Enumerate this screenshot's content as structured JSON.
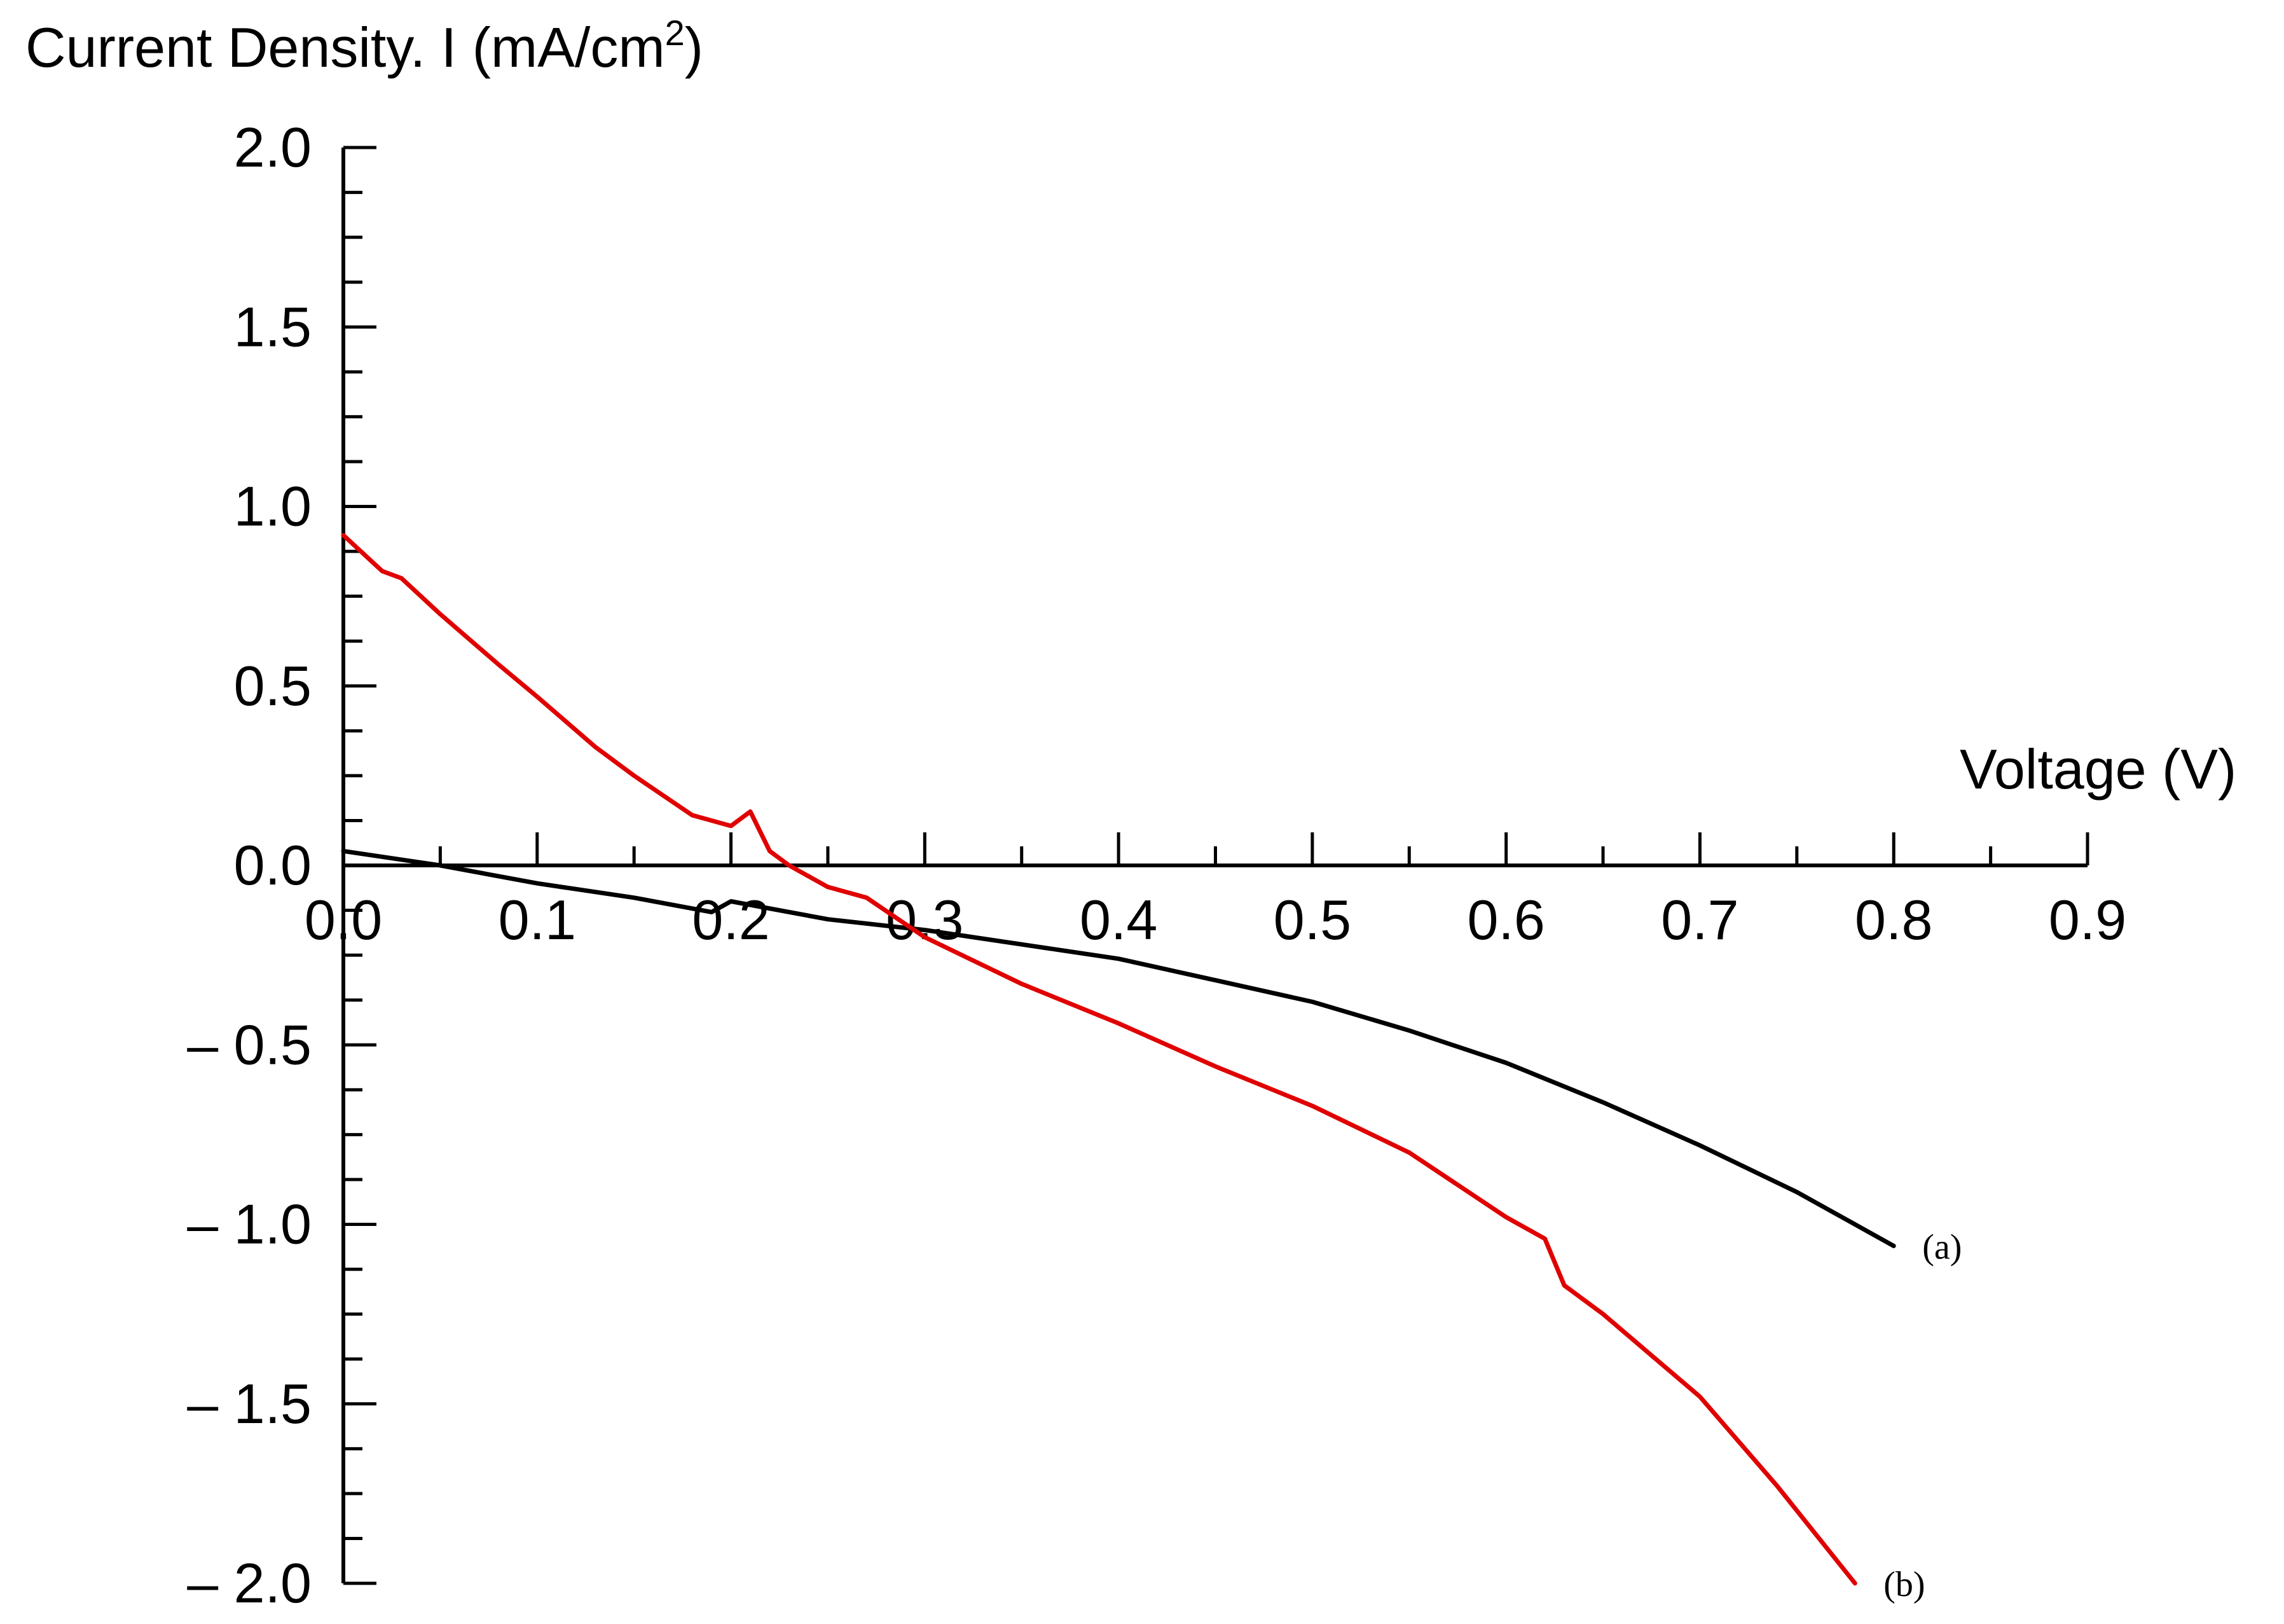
{
  "chart_data": {
    "type": "line",
    "ylabel": "Current Density. I (mA/cm",
    "ylabel_sup": "2",
    "ylabel_close": ")",
    "xlabel": "Voltage (V)",
    "xlim": [
      0.0,
      0.9
    ],
    "ylim": [
      -2.0,
      2.0
    ],
    "x_ticks": [
      "0.0",
      "0.1",
      "0.2",
      "0.3",
      "0.4",
      "0.5",
      "0.6",
      "0.7",
      "0.8",
      "0.9"
    ],
    "y_ticks": [
      {
        "value": 2.0,
        "label": "2.0"
      },
      {
        "value": 1.5,
        "label": "1.5"
      },
      {
        "value": 1.0,
        "label": "1.0"
      },
      {
        "value": 0.5,
        "label": "0.5"
      },
      {
        "value": 0.0,
        "label": "0.0"
      },
      {
        "value": -0.5,
        "label": "– 0.5"
      },
      {
        "value": -1.0,
        "label": "– 1.0"
      },
      {
        "value": -1.5,
        "label": "– 1.5"
      },
      {
        "value": -2.0,
        "label": "– 2.0"
      }
    ],
    "grid": false,
    "series": [
      {
        "name": "(a)",
        "color": "#000000",
        "x": [
          0.0,
          0.05,
          0.1,
          0.15,
          0.19,
          0.2,
          0.25,
          0.3,
          0.35,
          0.4,
          0.45,
          0.5,
          0.55,
          0.6,
          0.65,
          0.7,
          0.75,
          0.8
        ],
        "y": [
          0.04,
          0.0,
          -0.05,
          -0.09,
          -0.13,
          -0.1,
          -0.15,
          -0.18,
          -0.22,
          -0.26,
          -0.32,
          -0.38,
          -0.46,
          -0.55,
          -0.66,
          -0.78,
          -0.91,
          -1.06
        ]
      },
      {
        "name": "(b)",
        "color": "#e00000",
        "x": [
          0.0,
          0.02,
          0.03,
          0.05,
          0.08,
          0.1,
          0.13,
          0.15,
          0.18,
          0.2,
          0.21,
          0.22,
          0.23,
          0.25,
          0.27,
          0.3,
          0.35,
          0.4,
          0.45,
          0.5,
          0.55,
          0.6,
          0.62,
          0.63,
          0.65,
          0.7,
          0.74,
          0.78
        ],
        "y": [
          0.92,
          0.82,
          0.8,
          0.7,
          0.56,
          0.47,
          0.33,
          0.25,
          0.14,
          0.11,
          0.15,
          0.04,
          0.0,
          -0.06,
          -0.09,
          -0.2,
          -0.33,
          -0.44,
          -0.56,
          -0.67,
          -0.8,
          -0.98,
          -1.04,
          -1.17,
          -1.25,
          -1.48,
          -1.73,
          -2.0
        ]
      }
    ]
  }
}
